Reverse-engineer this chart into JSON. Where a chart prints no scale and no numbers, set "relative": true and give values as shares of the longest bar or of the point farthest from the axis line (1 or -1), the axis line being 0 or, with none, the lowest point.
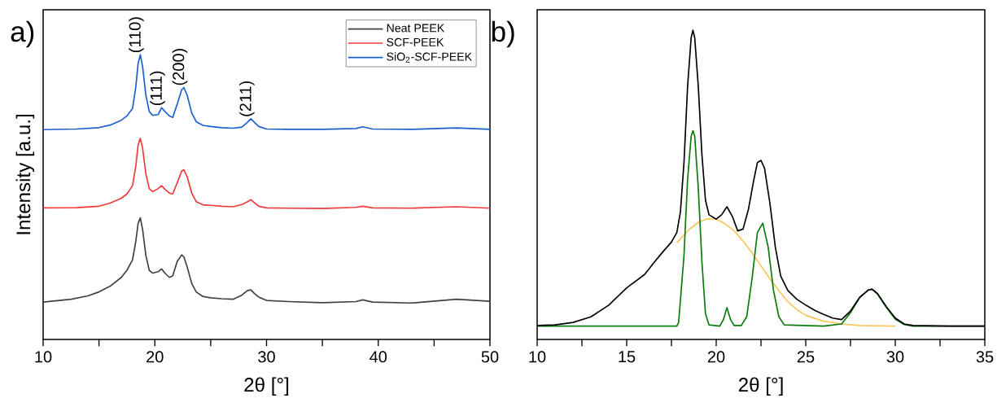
{
  "chart_data": [
    {
      "type": "line",
      "relative": true,
      "xlabel": "2θ [°]",
      "ylabel": "Intensity [a.u.]",
      "legend": "top right",
      "xlim": [
        10,
        50
      ],
      "xticks": [
        10,
        {
          "value": 15,
          "label": null
        },
        20,
        {
          "value": 25,
          "label": null
        },
        30,
        {
          "value": 35,
          "label": null
        },
        40,
        {
          "value": 45,
          "label": null
        },
        50
      ],
      "annotations": [
        "a)",
        {
          "text": "(110)",
          "x": 18.7,
          "y": 1
        },
        {
          "text": "(111)",
          "x": 20.6,
          "y": 0.814
        },
        {
          "text": "(200)",
          "x": 22.6,
          "y": 0.885
        },
        {
          "text": "(211)",
          "x": 28.6,
          "y": 0.775
        }
      ],
      "series": [
        {
          "name": "Neat PEEK",
          "color": "#404040",
          "x": [
            10,
            12.5,
            14,
            15,
            16,
            17,
            17.5,
            18,
            18.3,
            18.5,
            18.7,
            18.9,
            19.2,
            19.5,
            19.8,
            20.3,
            20.6,
            20.9,
            21.3,
            21.6,
            22,
            22.4,
            22.6,
            22.9,
            23.3,
            23.7,
            24.3,
            25,
            26,
            27,
            27.8,
            28.3,
            28.6,
            28.9,
            29.3,
            30,
            32,
            35,
            38,
            38.6,
            39.5,
            43,
            47,
            50
          ],
          "values": [
            0.131,
            0.141,
            0.153,
            0.167,
            0.187,
            0.218,
            0.243,
            0.279,
            0.346,
            0.407,
            0.427,
            0.387,
            0.294,
            0.243,
            0.233,
            0.238,
            0.248,
            0.233,
            0.218,
            0.223,
            0.274,
            0.297,
            0.29,
            0.254,
            0.197,
            0.167,
            0.151,
            0.146,
            0.143,
            0.141,
            0.156,
            0.172,
            0.174,
            0.162,
            0.149,
            0.137,
            0.133,
            0.129,
            0.133,
            0.139,
            0.131,
            0.128,
            0.141,
            0.134
          ]
        },
        {
          "name": "SCF-PEEK",
          "color": "#f03a3a",
          "x": [
            10,
            13,
            15,
            16,
            17,
            17.5,
            18,
            18.3,
            18.5,
            18.7,
            18.9,
            19.2,
            19.5,
            19.8,
            20.3,
            20.6,
            20.9,
            21.3,
            21.6,
            22,
            22.4,
            22.6,
            22.9,
            23.3,
            23.7,
            24.3,
            25,
            26,
            27,
            27.8,
            28.3,
            28.6,
            28.9,
            29.3,
            30,
            32,
            35,
            38,
            38.6,
            39.5,
            43,
            47,
            50
          ],
          "values": [
            0.462,
            0.463,
            0.468,
            0.479,
            0.496,
            0.511,
            0.54,
            0.611,
            0.683,
            0.706,
            0.673,
            0.581,
            0.53,
            0.519,
            0.53,
            0.54,
            0.528,
            0.514,
            0.511,
            0.55,
            0.591,
            0.596,
            0.571,
            0.514,
            0.484,
            0.473,
            0.471,
            0.468,
            0.466,
            0.474,
            0.484,
            0.491,
            0.481,
            0.468,
            0.462,
            0.461,
            0.46,
            0.464,
            0.468,
            0.462,
            0.461,
            0.466,
            0.461
          ]
        },
        {
          "name": "SiO$_{2}$-SCF-PEEK",
          "color": "#1a5fd0",
          "x": [
            10,
            13,
            15,
            16,
            17,
            17.5,
            18,
            18.3,
            18.5,
            18.7,
            18.9,
            19.2,
            19.5,
            19.8,
            20.3,
            20.6,
            20.9,
            21.3,
            21.6,
            22,
            22.4,
            22.6,
            22.9,
            23.3,
            23.7,
            24.3,
            25,
            26,
            27,
            27.8,
            28.3,
            28.6,
            28.9,
            29.3,
            30,
            32,
            35,
            38,
            38.6,
            39.5,
            43,
            47,
            50
          ],
          "values": [
            0.737,
            0.739,
            0.744,
            0.753,
            0.77,
            0.785,
            0.811,
            0.888,
            0.969,
            1,
            0.959,
            0.857,
            0.801,
            0.787,
            0.79,
            0.814,
            0.801,
            0.785,
            0.78,
            0.826,
            0.877,
            0.885,
            0.857,
            0.796,
            0.765,
            0.752,
            0.748,
            0.744,
            0.742,
            0.746,
            0.763,
            0.775,
            0.763,
            0.748,
            0.739,
            0.738,
            0.738,
            0.741,
            0.747,
            0.739,
            0.738,
            0.743,
            0.738
          ]
        }
      ]
    },
    {
      "type": "line",
      "relative": true,
      "xlabel": "2θ [°]",
      "xlim": [
        10,
        35
      ],
      "xticks": [
        10,
        {
          "value": 12.5,
          "label": null
        },
        15,
        {
          "value": 17.5,
          "label": null
        },
        20,
        {
          "value": 22.5,
          "label": null
        },
        25,
        {
          "value": 27.5,
          "label": null
        },
        30,
        {
          "value": 32.5,
          "label": null
        },
        35
      ],
      "annotations": [
        "b)"
      ],
      "series": [
        {
          "color": "#fcc55a",
          "x": [
            17.8,
            18.5,
            19,
            19.5,
            20,
            20.5,
            21,
            21.5,
            22,
            22.5,
            23,
            23.5,
            24,
            24.5,
            25,
            26,
            27,
            28,
            30
          ],
          "values": [
            0.313,
            0.356,
            0.379,
            0.39,
            0.389,
            0.374,
            0.351,
            0.318,
            0.28,
            0.238,
            0.196,
            0.158,
            0.122,
            0.097,
            0.078,
            0.059,
            0.05,
            0.045,
            0.043
          ]
        },
        {
          "color": "#0a7a0a",
          "x": [
            10,
            17.8,
            17.9,
            18.2,
            18.4,
            18.6,
            18.7,
            18.8,
            19,
            19.2,
            19.4,
            19.6,
            20.2,
            20.4,
            20.6,
            20.8,
            21,
            21.4,
            21.7,
            22,
            22.3,
            22.6,
            22.9,
            23.2,
            23.5,
            23.8,
            26,
            27,
            27.5,
            28,
            28.5,
            28.7,
            29,
            29.5,
            30,
            30.5,
            31,
            35
          ],
          "values": [
            0.043,
            0.043,
            0.055,
            0.271,
            0.516,
            0.657,
            0.675,
            0.657,
            0.488,
            0.252,
            0.083,
            0.047,
            0.043,
            0.064,
            0.103,
            0.064,
            0.045,
            0.045,
            0.073,
            0.196,
            0.346,
            0.376,
            0.299,
            0.158,
            0.073,
            0.047,
            0.043,
            0.05,
            0.087,
            0.135,
            0.16,
            0.162,
            0.147,
            0.104,
            0.066,
            0.048,
            0.043,
            0.043
          ]
        },
        {
          "color": "#000000",
          "x": [
            10,
            11,
            12,
            13,
            14,
            15,
            16,
            16.5,
            17,
            17.5,
            17.8,
            18,
            18.2,
            18.4,
            18.6,
            18.7,
            18.8,
            19,
            19.2,
            19.4,
            19.6,
            20,
            20.3,
            20.6,
            20.9,
            21.2,
            21.5,
            21.8,
            22.1,
            22.3,
            22.5,
            22.7,
            23,
            23.3,
            23.6,
            24,
            24.5,
            25,
            25.5,
            26,
            26.5,
            27,
            27.5,
            28,
            28.5,
            28.7,
            29,
            29.5,
            30,
            30.5,
            31,
            33,
            35
          ],
          "values": [
            0.045,
            0.047,
            0.055,
            0.073,
            0.111,
            0.167,
            0.21,
            0.247,
            0.282,
            0.315,
            0.346,
            0.412,
            0.572,
            0.817,
            0.976,
            1,
            0.976,
            0.817,
            0.599,
            0.45,
            0.403,
            0.389,
            0.403,
            0.429,
            0.398,
            0.351,
            0.357,
            0.421,
            0.516,
            0.572,
            0.579,
            0.553,
            0.44,
            0.299,
            0.205,
            0.158,
            0.13,
            0.111,
            0.094,
            0.081,
            0.069,
            0.064,
            0.092,
            0.135,
            0.16,
            0.163,
            0.149,
            0.106,
            0.069,
            0.05,
            0.045,
            0.043,
            0.043
          ]
        }
      ]
    }
  ]
}
